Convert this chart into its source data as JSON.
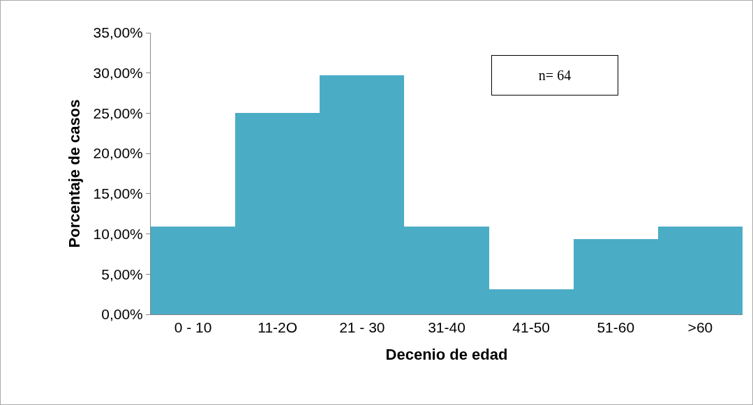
{
  "chart_data": {
    "type": "bar",
    "xlabel": "Decenio de edad",
    "ylabel": "Porcentaje de casos",
    "annotations": [
      "n= 64"
    ],
    "categories": [
      "0 - 10",
      "11-2O",
      "21 - 30",
      "31-40",
      "41-50",
      "51-60",
      ">60"
    ],
    "values": [
      10.9,
      25,
      29.7,
      10.9,
      3.1,
      9.4,
      10.9
    ],
    "color": "#4bacc6",
    "ylim": [
      0,
      35
    ],
    "yticks": [
      {
        "value": 0,
        "label": "0,00%"
      },
      {
        "value": 5,
        "label": "5,00%"
      },
      {
        "value": 10,
        "label": "10,00%"
      },
      {
        "value": 15,
        "label": "15,00%"
      },
      {
        "value": 20,
        "label": "20,00%"
      },
      {
        "value": 25,
        "label": "25,00%"
      },
      {
        "value": 30,
        "label": "30,00%"
      },
      {
        "value": 35,
        "label": "35,00%"
      }
    ],
    "grid": false
  }
}
